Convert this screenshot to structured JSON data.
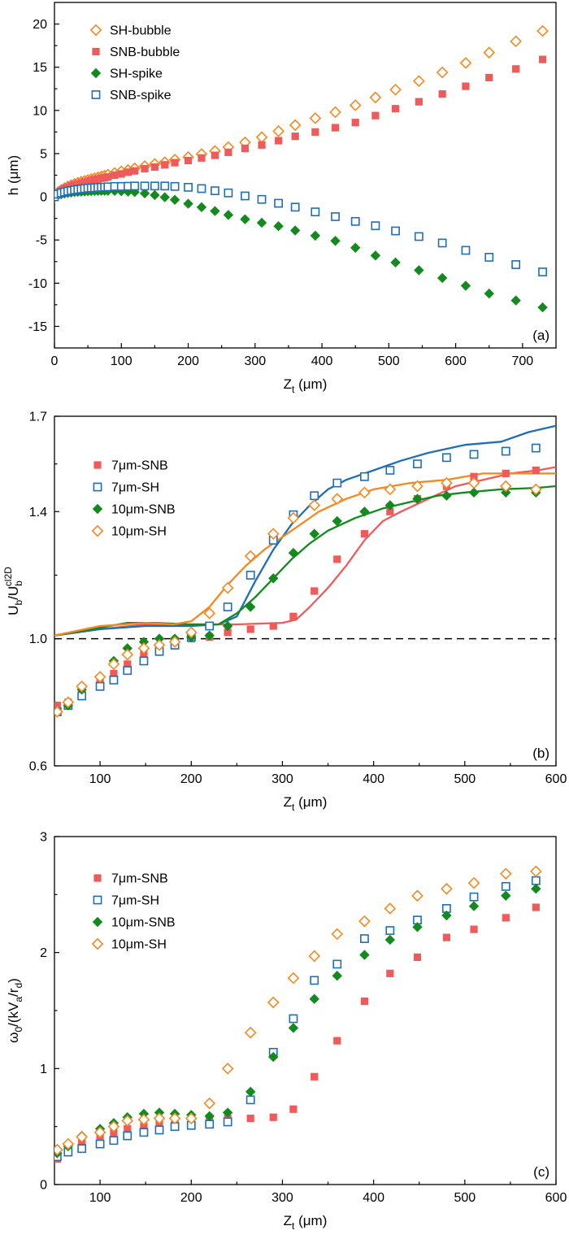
{
  "chart_data": [
    {
      "type": "scatter",
      "panel_label": "(a)",
      "xlabel": "Z_t (μm)",
      "ylabel": "h (μm)",
      "xlim": [
        0,
        750
      ],
      "ylim": [
        -17.5,
        22.5
      ],
      "xticks": [
        0,
        100,
        200,
        300,
        400,
        500,
        600,
        700
      ],
      "yticks": [
        -15,
        -10,
        -5,
        0,
        5,
        10,
        15,
        20
      ],
      "legend_position": "top-left",
      "series": [
        {
          "name": "SH-bubble",
          "marker": "diamond-open",
          "color": "#f5891f",
          "x": [
            0,
            5,
            10,
            15,
            20,
            25,
            30,
            35,
            40,
            45,
            50,
            55,
            60,
            65,
            70,
            75,
            80,
            90,
            100,
            110,
            120,
            135,
            150,
            165,
            180,
            200,
            220,
            240,
            260,
            285,
            310,
            335,
            360,
            390,
            420,
            450,
            480,
            510,
            545,
            580,
            615,
            650,
            690,
            730
          ],
          "y": [
            0,
            0.5,
            0.8,
            1.0,
            1.2,
            1.35,
            1.5,
            1.62,
            1.75,
            1.85,
            1.95,
            2.05,
            2.15,
            2.25,
            2.35,
            2.45,
            2.55,
            2.75,
            2.95,
            3.1,
            3.3,
            3.55,
            3.8,
            4.0,
            4.3,
            4.6,
            4.95,
            5.3,
            5.75,
            6.3,
            6.9,
            7.6,
            8.3,
            9.1,
            9.8,
            10.6,
            11.5,
            12.4,
            13.4,
            14.4,
            15.5,
            16.7,
            18.0,
            19.2
          ]
        },
        {
          "name": "SNB-bubble",
          "marker": "square-filled",
          "color": "#ef5a5a",
          "x": [
            0,
            5,
            10,
            15,
            20,
            25,
            30,
            35,
            40,
            45,
            50,
            55,
            60,
            65,
            70,
            75,
            80,
            90,
            100,
            110,
            120,
            135,
            150,
            165,
            180,
            200,
            220,
            240,
            260,
            285,
            310,
            335,
            360,
            390,
            420,
            450,
            480,
            510,
            545,
            580,
            615,
            650,
            690,
            730
          ],
          "y": [
            0,
            0.45,
            0.75,
            0.95,
            1.1,
            1.25,
            1.4,
            1.5,
            1.6,
            1.7,
            1.8,
            1.9,
            2.0,
            2.05,
            2.15,
            2.2,
            2.3,
            2.5,
            2.65,
            2.85,
            3.0,
            3.25,
            3.45,
            3.7,
            3.95,
            4.2,
            4.5,
            4.8,
            5.15,
            5.6,
            6.0,
            6.5,
            7.0,
            7.5,
            8.0,
            8.6,
            9.4,
            10.2,
            11.0,
            11.9,
            12.8,
            13.8,
            14.8,
            15.9
          ]
        },
        {
          "name": "SH-spike",
          "marker": "diamond-filled",
          "color": "#138a1e",
          "x": [
            0,
            5,
            10,
            15,
            20,
            25,
            30,
            35,
            40,
            45,
            50,
            55,
            60,
            65,
            70,
            75,
            80,
            90,
            100,
            110,
            120,
            135,
            150,
            165,
            180,
            200,
            220,
            240,
            260,
            285,
            310,
            335,
            360,
            390,
            420,
            450,
            480,
            510,
            545,
            580,
            615,
            650,
            690,
            730
          ],
          "y": [
            0,
            0.2,
            0.3,
            0.38,
            0.45,
            0.5,
            0.55,
            0.58,
            0.6,
            0.62,
            0.65,
            0.66,
            0.68,
            0.69,
            0.7,
            0.7,
            0.7,
            0.68,
            0.65,
            0.6,
            0.55,
            0.4,
            0.2,
            -0.05,
            -0.35,
            -0.8,
            -1.2,
            -1.65,
            -2.1,
            -2.6,
            -3.0,
            -3.4,
            -3.9,
            -4.5,
            -5.1,
            -5.9,
            -6.8,
            -7.6,
            -8.5,
            -9.4,
            -10.3,
            -11.2,
            -12.0,
            -12.8
          ]
        },
        {
          "name": "SNB-spike",
          "marker": "square-open",
          "color": "#1f6fb5",
          "x": [
            0,
            5,
            10,
            15,
            20,
            25,
            30,
            35,
            40,
            45,
            50,
            55,
            60,
            65,
            70,
            75,
            80,
            90,
            100,
            110,
            120,
            135,
            150,
            165,
            180,
            200,
            220,
            240,
            260,
            285,
            310,
            335,
            360,
            390,
            420,
            450,
            480,
            510,
            545,
            580,
            615,
            650,
            690,
            730
          ],
          "y": [
            0,
            0.3,
            0.45,
            0.55,
            0.65,
            0.72,
            0.8,
            0.85,
            0.9,
            0.95,
            1.0,
            1.02,
            1.05,
            1.08,
            1.1,
            1.12,
            1.15,
            1.2,
            1.2,
            1.22,
            1.25,
            1.25,
            1.25,
            1.25,
            1.2,
            1.1,
            0.95,
            0.7,
            0.45,
            0.1,
            -0.3,
            -0.75,
            -1.2,
            -1.75,
            -2.3,
            -2.85,
            -3.35,
            -3.95,
            -4.6,
            -5.35,
            -6.2,
            -7.0,
            -7.85,
            -8.7
          ]
        }
      ]
    },
    {
      "type": "scatter",
      "panel_label": "(b)",
      "xlabel": "Z_t (μm)",
      "ylabel": "U_b/U_b^cl2D",
      "xlim": [
        50,
        600
      ],
      "ylim": [
        0.6,
        1.7
      ],
      "xticks": [
        100,
        200,
        300,
        400,
        500,
        600
      ],
      "yticks": [
        0.6,
        1.0,
        1.4,
        1.7
      ],
      "minor_yticks": [
        0.8,
        1.2,
        1.55
      ],
      "reference_line": 1.0,
      "legend_position": "top-left",
      "series": [
        {
          "name": "7μm-SNB",
          "marker": "square-filled",
          "color": "#ef5a5a",
          "x": [
            53,
            65,
            80,
            100,
            115,
            130,
            148,
            165,
            182,
            200,
            220,
            240,
            265,
            290,
            312,
            335,
            360,
            390,
            418,
            448,
            480,
            510,
            545,
            578
          ],
          "y": [
            0.79,
            0.8,
            0.83,
            0.87,
            0.89,
            0.92,
            0.95,
            0.97,
            0.99,
            1.0,
            1.005,
            1.02,
            1.03,
            1.04,
            1.07,
            1.15,
            1.25,
            1.33,
            1.4,
            1.44,
            1.48,
            1.51,
            1.52,
            1.53
          ],
          "line": {
            "x": [
              50,
              100,
              150,
              200,
              250,
              300,
              315,
              330,
              350,
              370,
              390,
              410,
              430,
              460,
              490,
              520,
              550,
              580,
              600
            ],
            "y": [
              1.01,
              1.03,
              1.045,
              1.045,
              1.045,
              1.05,
              1.06,
              1.1,
              1.16,
              1.23,
              1.31,
              1.37,
              1.4,
              1.44,
              1.48,
              1.5,
              1.52,
              1.53,
              1.54
            ]
          }
        },
        {
          "name": "7μm-SH",
          "marker": "square-open",
          "color": "#1f6fb5",
          "x": [
            53,
            65,
            80,
            100,
            115,
            130,
            148,
            165,
            182,
            200,
            220,
            240,
            265,
            290,
            312,
            335,
            360,
            390,
            418,
            448,
            480,
            510,
            545,
            578
          ],
          "y": [
            0.77,
            0.79,
            0.82,
            0.85,
            0.87,
            0.9,
            0.93,
            0.96,
            0.98,
            1.005,
            1.04,
            1.1,
            1.2,
            1.31,
            1.39,
            1.45,
            1.49,
            1.51,
            1.53,
            1.55,
            1.57,
            1.58,
            1.59,
            1.6
          ],
          "line": {
            "x": [
              50,
              100,
              150,
              200,
              230,
              250,
              270,
              290,
              310,
              330,
              350,
              370,
              400,
              430,
              460,
              500,
              540,
              570,
              600
            ],
            "y": [
              1.01,
              1.03,
              1.04,
              1.04,
              1.045,
              1.07,
              1.18,
              1.28,
              1.36,
              1.42,
              1.47,
              1.5,
              1.53,
              1.56,
              1.585,
              1.61,
              1.62,
              1.65,
              1.67
            ]
          }
        },
        {
          "name": "10μm-SNB",
          "marker": "diamond-filled",
          "color": "#138a1e",
          "x": [
            53,
            65,
            80,
            100,
            115,
            130,
            148,
            165,
            182,
            200,
            220,
            240,
            265,
            290,
            312,
            335,
            360,
            390,
            418,
            448,
            480,
            510,
            545,
            578
          ],
          "y": [
            0.77,
            0.79,
            0.84,
            0.88,
            0.93,
            0.97,
            0.99,
            1.0,
            1.0,
            1.005,
            1.01,
            1.04,
            1.1,
            1.19,
            1.27,
            1.33,
            1.37,
            1.4,
            1.42,
            1.44,
            1.45,
            1.46,
            1.46,
            1.46
          ],
          "line": {
            "x": [
              50,
              100,
              130,
              160,
              200,
              230,
              250,
              270,
              290,
              310,
              330,
              350,
              380,
              410,
              440,
              470,
              500,
              540,
              580,
              600
            ],
            "y": [
              1.01,
              1.035,
              1.05,
              1.05,
              1.045,
              1.045,
              1.08,
              1.13,
              1.19,
              1.25,
              1.3,
              1.34,
              1.38,
              1.41,
              1.43,
              1.45,
              1.46,
              1.47,
              1.475,
              1.48
            ]
          }
        },
        {
          "name": "10μm-SH",
          "marker": "diamond-open",
          "color": "#f5891f",
          "x": [
            53,
            65,
            80,
            100,
            115,
            130,
            148,
            165,
            182,
            200,
            220,
            240,
            265,
            290,
            312,
            335,
            360,
            390,
            418,
            448,
            480,
            510,
            545,
            578
          ],
          "y": [
            0.77,
            0.8,
            0.85,
            0.88,
            0.92,
            0.95,
            0.97,
            0.98,
            0.99,
            1.02,
            1.08,
            1.16,
            1.26,
            1.33,
            1.38,
            1.42,
            1.44,
            1.46,
            1.47,
            1.48,
            1.49,
            1.49,
            1.48,
            1.47
          ],
          "line": {
            "x": [
              50,
              100,
              150,
              180,
              200,
              220,
              240,
              260,
              280,
              300,
              320,
              340,
              370,
              400,
              440,
              480,
              520,
              560,
              600
            ],
            "y": [
              1.01,
              1.04,
              1.05,
              1.045,
              1.055,
              1.1,
              1.17,
              1.23,
              1.28,
              1.32,
              1.36,
              1.4,
              1.44,
              1.47,
              1.49,
              1.5,
              1.52,
              1.52,
              1.52
            ]
          }
        }
      ]
    },
    {
      "type": "scatter",
      "panel_label": "(c)",
      "xlabel": "Z_t (μm)",
      "ylabel": "ω0/(kVa/rd)",
      "xlim": [
        50,
        600
      ],
      "ylim": [
        0,
        3
      ],
      "xticks": [
        100,
        200,
        300,
        400,
        500,
        600
      ],
      "yticks": [
        0,
        1,
        2,
        3
      ],
      "legend_position": "top-left",
      "series": [
        {
          "name": "7μm-SNB",
          "marker": "square-filled",
          "color": "#ef5a5a",
          "x": [
            53,
            65,
            80,
            100,
            115,
            130,
            148,
            165,
            182,
            200,
            220,
            240,
            265,
            290,
            312,
            335,
            360,
            390,
            418,
            448,
            480,
            510,
            545,
            578
          ],
          "y": [
            0.22,
            0.3,
            0.36,
            0.42,
            0.45,
            0.48,
            0.5,
            0.52,
            0.53,
            0.55,
            0.56,
            0.57,
            0.57,
            0.58,
            0.65,
            0.93,
            1.24,
            1.58,
            1.82,
            1.96,
            2.13,
            2.2,
            2.3,
            2.39
          ]
        },
        {
          "name": "7μm-SH",
          "marker": "square-open",
          "color": "#1f6fb5",
          "x": [
            53,
            65,
            80,
            100,
            115,
            130,
            148,
            165,
            182,
            200,
            220,
            240,
            265,
            290,
            312,
            335,
            360,
            390,
            418,
            448,
            480,
            510,
            545,
            578
          ],
          "y": [
            0.24,
            0.28,
            0.31,
            0.35,
            0.38,
            0.42,
            0.45,
            0.47,
            0.5,
            0.51,
            0.52,
            0.54,
            0.73,
            1.14,
            1.43,
            1.76,
            1.9,
            2.12,
            2.19,
            2.28,
            2.38,
            2.48,
            2.57,
            2.62
          ]
        },
        {
          "name": "10μm-SNB",
          "marker": "diamond-filled",
          "color": "#138a1e",
          "x": [
            53,
            65,
            80,
            100,
            115,
            130,
            148,
            165,
            182,
            200,
            220,
            240,
            265,
            290,
            312,
            335,
            360,
            390,
            418,
            448,
            480,
            510,
            545,
            578
          ],
          "y": [
            0.27,
            0.33,
            0.42,
            0.48,
            0.53,
            0.58,
            0.61,
            0.62,
            0.61,
            0.6,
            0.59,
            0.62,
            0.8,
            1.1,
            1.35,
            1.6,
            1.8,
            1.98,
            2.11,
            2.22,
            2.32,
            2.4,
            2.49,
            2.55
          ]
        },
        {
          "name": "10μm-SH",
          "marker": "diamond-open",
          "color": "#f5891f",
          "x": [
            53,
            65,
            80,
            100,
            115,
            130,
            148,
            165,
            182,
            200,
            220,
            240,
            265,
            290,
            312,
            335,
            360,
            390,
            418,
            448,
            480,
            510,
            545,
            578
          ],
          "y": [
            0.3,
            0.35,
            0.41,
            0.45,
            0.5,
            0.55,
            0.56,
            0.57,
            0.57,
            0.57,
            0.7,
            1.0,
            1.31,
            1.57,
            1.78,
            1.97,
            2.16,
            2.27,
            2.38,
            2.49,
            2.55,
            2.6,
            2.68,
            2.7
          ]
        }
      ]
    }
  ]
}
